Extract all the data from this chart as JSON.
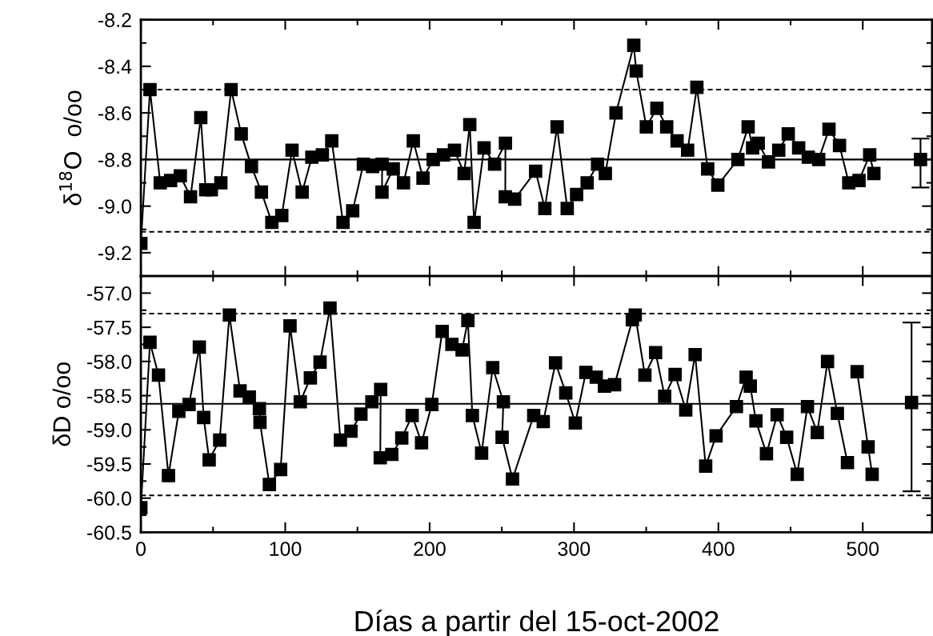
{
  "chart_data": [
    {
      "type": "line",
      "ylabel": "δ$^{18}$O  o/oo",
      "xlim": [
        0,
        548
      ],
      "xticks": [
        0,
        100,
        200,
        300,
        400,
        500
      ],
      "ylim": [
        -9.3,
        -8.2
      ],
      "yticks": [
        -8.2,
        -8.4,
        -8.6,
        -8.8,
        {
          "value": -9.0,
          "label": "-9.0"
        },
        -9.2
      ],
      "tick_labels": "y",
      "grid": false,
      "legend": false,
      "marker": "square",
      "line_style": "solid",
      "ref_lines": [
        {
          "axis": "y",
          "value": -8.5,
          "line_style": "dashed",
          "color": "#000000"
        },
        {
          "axis": "y",
          "value": -8.8,
          "line_style": "solid",
          "color": "#000000"
        },
        {
          "axis": "y",
          "value": -9.11,
          "line_style": "dashed",
          "color": "#000000"
        }
      ],
      "series": [
        {
          "color": "#000000",
          "x": [
            0,
            6.3,
            13.4,
            20.6,
            27.3,
            34.4,
            41.5,
            44.9,
            48.8,
            55.4,
            62.5,
            69.5,
            76.6,
            83.5,
            90.7,
            97.6,
            104.7,
            111.7,
            118.4,
            125.7,
            132.2,
            140,
            146.7,
            154.1,
            160.5,
            167.1,
            167,
            174.8,
            181.9,
            188.7,
            195.4,
            202.5,
            209.6,
            217.2,
            223.9,
            227.8,
            230.8,
            237.7,
            245,
            252.5,
            252.4,
            258.9,
            273.4,
            279.8,
            288.3,
            295.3,
            301.8,
            309.1,
            316.3,
            321.7,
            329.1,
            341.4,
            343.1,
            350.1,
            357.4,
            364.2,
            371.4,
            378.7,
            385.1,
            392.6,
            399.6,
            413.5,
            420.6,
            423.7,
            427.6,
            434.7,
            441.8,
            448.4,
            455.6,
            462.3,
            469.5,
            476.6,
            483.9,
            490.3,
            497.4,
            504.8,
            507.7
          ],
          "values": [
            -9.16,
            -8.5,
            -8.9,
            -8.89,
            -8.87,
            -8.96,
            -8.62,
            -8.93,
            -8.93,
            -8.9,
            -8.5,
            -8.69,
            -8.83,
            -8.94,
            -9.07,
            -9.04,
            -8.76,
            -8.94,
            -8.79,
            -8.78,
            -8.72,
            -9.07,
            -9.02,
            -8.82,
            -8.83,
            -8.82,
            -8.94,
            -8.84,
            -8.9,
            -8.72,
            -8.88,
            -8.8,
            -8.78,
            -8.76,
            -8.86,
            -8.65,
            -9.07,
            -8.75,
            -8.82,
            -8.73,
            -8.96,
            -8.97,
            -8.85,
            -9.01,
            -8.66,
            -9.01,
            -8.95,
            -8.9,
            -8.82,
            -8.86,
            -8.6,
            -8.31,
            -8.42,
            -8.66,
            -8.58,
            -8.66,
            -8.72,
            -8.76,
            -8.49,
            -8.84,
            -8.91,
            -8.8,
            -8.66,
            -8.75,
            -8.73,
            -8.81,
            -8.76,
            -8.69,
            -8.75,
            -8.79,
            -8.8,
            -8.67,
            -8.74,
            -8.9,
            -8.89,
            -8.78,
            -8.86
          ]
        },
        {
          "type": "scatter",
          "color": "#000000",
          "x": [
            540
          ],
          "values": [
            -8.8
          ],
          "errors": [
            [
              -8.92,
              -8.71
            ]
          ]
        }
      ]
    },
    {
      "type": "line",
      "xlabel": "Días a partir del 15-oct-2002",
      "ylabel": "δD o/oo",
      "xlim": [
        0,
        548
      ],
      "xticks": [
        0,
        100,
        200,
        300,
        400,
        500
      ],
      "ylim": [
        -60.5,
        -56.75
      ],
      "yticks": [
        {
          "value": -57,
          "label": "-57.0"
        },
        -57.5,
        {
          "value": -58,
          "label": "-58.0"
        },
        -58.5,
        {
          "value": -59,
          "label": "-59.0"
        },
        -59.5,
        {
          "value": -60,
          "label": "-60.0"
        },
        -60.5
      ],
      "grid": false,
      "legend": false,
      "marker": "square",
      "line_style": "solid",
      "ref_lines": [
        {
          "axis": "y",
          "value": -57.3,
          "line_style": "dashed",
          "color": "#000000"
        },
        {
          "axis": "y",
          "value": -58.62,
          "line_style": "solid",
          "color": "#000000"
        },
        {
          "axis": "y",
          "value": -59.96,
          "line_style": "dashed",
          "color": "#000000"
        }
      ],
      "series": [
        {
          "color": "#000000",
          "x": [
            0,
            6.3,
            12.2,
            19.1,
            26.3,
            33.4,
            40.5,
            43.5,
            47.3,
            54.6,
            61.3,
            68.7,
            75.1,
            82.1,
            82.5,
            89,
            96.8,
            103.3,
            110.4,
            117.4,
            124.1,
            131,
            138.2,
            145.5,
            152.4,
            160,
            166.1,
            165.8,
            173.8,
            180.7,
            187.9,
            194.4,
            201.5,
            208.7,
            215.4,
            222.5,
            226.5,
            229.6,
            236,
            243.7,
            251.1,
            250.2,
            257.4,
            272.1,
            278.7,
            287.2,
            294.3,
            300.9,
            308.2,
            315.4,
            321.1,
            328.1,
            340.4,
            342.4,
            349.1,
            356.5,
            362.8,
            370,
            377.4,
            383.9,
            391.2,
            398.4,
            412.5,
            419.2,
            422.1,
            426,
            433.3,
            440.7,
            447.3,
            454.6,
            461.7,
            468.5,
            475.6,
            482.4,
            489.4
          ],
          "values": [
            -60.14,
            -57.72,
            -58.2,
            -59.67,
            -58.73,
            -58.63,
            -57.79,
            -58.82,
            -59.44,
            -59.15,
            -57.32,
            -58.43,
            -58.52,
            -58.69,
            -58.89,
            -59.8,
            -59.58,
            -57.48,
            -58.59,
            -58.24,
            -58.01,
            -57.22,
            -59.15,
            -59.02,
            -58.77,
            -58.59,
            -58.41,
            -59.41,
            -59.36,
            -59.12,
            -58.79,
            -59.19,
            -58.63,
            -57.56,
            -57.75,
            -57.83,
            -57.4,
            -58.79,
            -59.34,
            -58.09,
            -58.59,
            -59.11,
            -59.72,
            -58.79,
            -58.88,
            -58.02,
            -58.46,
            -58.9,
            -58.16,
            -58.23,
            -58.36,
            -58.34,
            -57.39,
            -57.32,
            -58.2,
            -57.87,
            -58.51,
            -58.19,
            -58.71,
            -57.9,
            -59.53,
            -59.09,
            -58.66,
            -58.23,
            -58.36,
            -58.87,
            -59.35,
            -58.78,
            -59.11,
            -59.65,
            -58.66,
            -59.04,
            -58,
            -58.76,
            -59.48
          ]
        },
        {
          "color": "#000000",
          "x": [
            496.1,
            503.7,
            506.5
          ],
          "values": [
            -58.15,
            -59.25,
            -59.65
          ]
        },
        {
          "type": "scatter",
          "color": "#000000",
          "x": [
            533.8
          ],
          "values": [
            -58.6
          ],
          "errors": [
            [
              -59.9,
              -57.43
            ]
          ]
        }
      ]
    }
  ]
}
